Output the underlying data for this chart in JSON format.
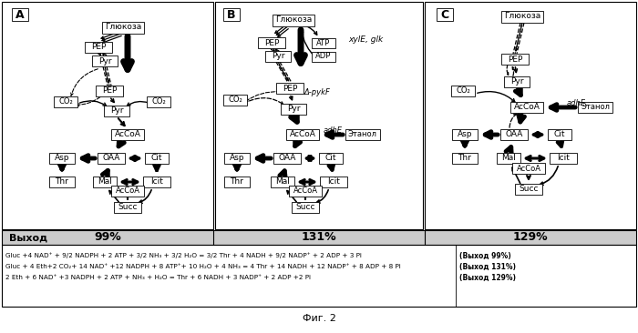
{
  "title": "Фиг. 2",
  "panel_A_label": "A",
  "panel_B_label": "B",
  "panel_C_label": "C",
  "yield_label": "Выход",
  "yield_A": "99%",
  "yield_B": "131%",
  "yield_C": "129%",
  "equation1": "Gluc +4 NAD⁺ + 9/2 NADPH + 2 ATP + 3/2 NH₃ + 3/2 H₂O = 3/2 Thr + 4 NADH + 9/2 NADP⁺ + 2 ADP + 3 Pi",
  "equation2": "Gluc + 4 Eth+2 CO₂+ 14 NAD⁺ +12 NADPH + 8 ATP⁺+ 10 H₂O + 4 NH₃ = 4 Thr + 14 NADH + 12 NADP⁺ + 8 ADP + 8 Pi",
  "equation3": "2 Eth + 6 NAD⁺ +3 NADPH + 2 ATP + NH₃ + H₂O = Thr + 6 NADH + 3 NADP⁺ + 2 ADP +2 Pi",
  "ref_A": "(Выход 99%)",
  "ref_B": "(Выход 131%)",
  "ref_C": "(Выход 129%)",
  "glucose": "Глюкоза",
  "ethanol": "Этанол",
  "bg_color": "#ffffff"
}
